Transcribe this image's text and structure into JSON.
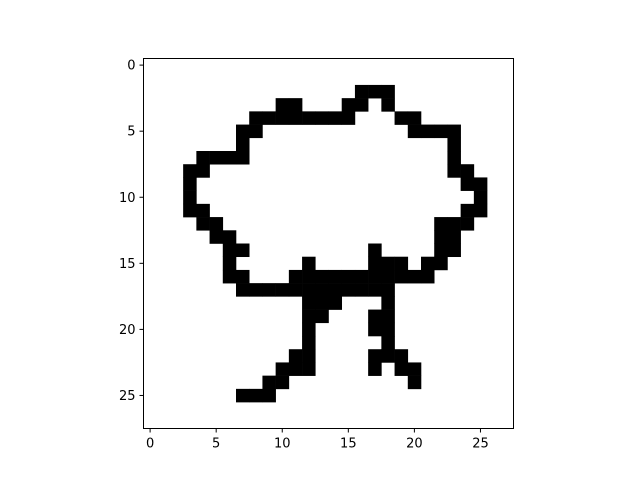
{
  "chart_data": {
    "type": "heatmap",
    "title": "",
    "xlabel": "",
    "ylabel": "",
    "xlim": [
      -0.5,
      27.5
    ],
    "ylim": [
      27.5,
      -0.5
    ],
    "x_ticks": [
      0,
      5,
      10,
      15,
      20,
      25
    ],
    "y_ticks": [
      0,
      5,
      10,
      15,
      20,
      25
    ],
    "x_tick_labels": [
      "0",
      "5",
      "10",
      "15",
      "20",
      "25"
    ],
    "y_tick_labels": [
      "0",
      "5",
      "10",
      "15",
      "20",
      "25"
    ],
    "grid": false,
    "colormap": {
      "0": "#ffffff",
      "1": "#000000"
    },
    "shape": [
      28,
      28
    ],
    "rows": [
      "0000000000000000000000000000",
      "0000000000000000000000000000",
      "0000000000000000111000000000",
      "0000000000110001101000000000",
      "0000000011111111000110000000",
      "0000000110000000000011110000",
      "0000000100000000000000010000",
      "0000111100000000000000010000",
      "0001100000000000000000011000",
      "0001000000000000000000001100",
      "0001000000000000000000000100",
      "0001100000000000000000001100",
      "0000110000000000000000111000",
      "0000011000000000000000110000",
      "0000001100000000010000110000",
      "0000001000001000011101100000",
      "0000001100011111111111000000",
      "0000000111111111111000000000",
      "0000000000001110001000000000",
      "0000000000001100011000000000",
      "0000000000001000011000000000",
      "0000000000001000001000000000",
      "0000000000011000011100000000",
      "0000000000111000010110000000",
      "0000000001100000000010000000",
      "0000000111000000000000000000",
      "0000000000000000000000000000",
      "0000000000000000000000000000"
    ]
  }
}
